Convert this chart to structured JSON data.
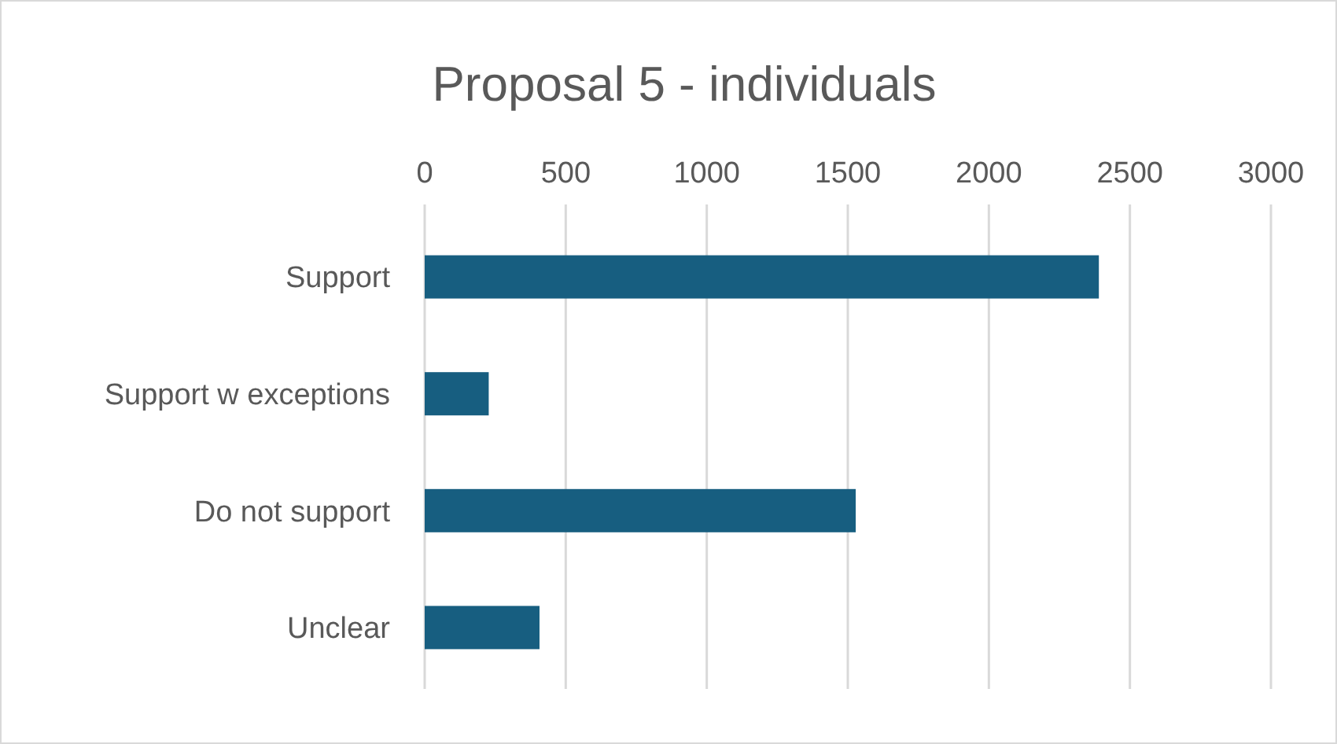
{
  "chart_data": {
    "type": "bar",
    "orientation": "horizontal",
    "title": "Proposal 5 - individuals",
    "categories": [
      "Support",
      "Support w exceptions",
      "Do not support",
      "Unclear"
    ],
    "values": [
      2390,
      227,
      1528,
      407
    ],
    "color": "#175e80",
    "xlim": [
      0,
      3000
    ],
    "xticks": [
      0,
      500,
      1000,
      1500,
      2000,
      2500,
      3000
    ],
    "grid": "x"
  }
}
